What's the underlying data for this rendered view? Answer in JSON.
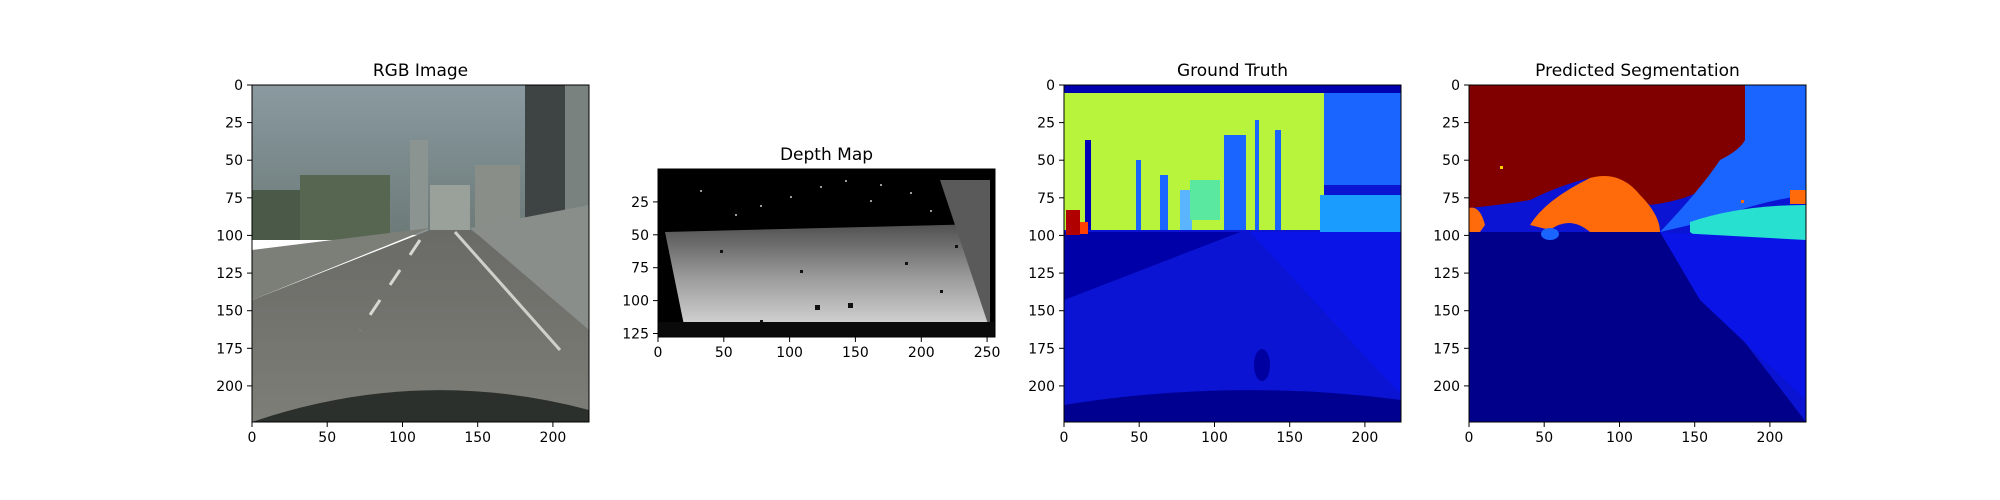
{
  "panels": [
    {
      "id": "rgb",
      "title": "RGB Image",
      "x_ticks": [
        "0",
        "50",
        "100",
        "150",
        "200"
      ],
      "y_ticks": [
        "0",
        "25",
        "50",
        "75",
        "100",
        "125",
        "150",
        "175",
        "200"
      ]
    },
    {
      "id": "depth",
      "title": "Depth Map",
      "x_ticks": [
        "0",
        "50",
        "100",
        "150",
        "200",
        "250"
      ],
      "y_ticks": [
        "25",
        "50",
        "75",
        "100",
        "125"
      ]
    },
    {
      "id": "gt",
      "title": "Ground Truth",
      "x_ticks": [
        "0",
        "50",
        "100",
        "150",
        "200"
      ],
      "y_ticks": [
        "0",
        "25",
        "50",
        "75",
        "100",
        "125",
        "150",
        "175",
        "200"
      ]
    },
    {
      "id": "pred",
      "title": "Predicted Segmentation",
      "x_ticks": [
        "0",
        "50",
        "100",
        "150",
        "200"
      ],
      "y_ticks": [
        "0",
        "25",
        "50",
        "75",
        "100",
        "125",
        "150",
        "175",
        "200"
      ]
    }
  ],
  "colors": {
    "jet_dark_navy": "#00008b",
    "jet_blue": "#0a14d2",
    "jet_light_blue": "#1a64ff",
    "jet_cyan": "#28e0d0",
    "jet_yellow_green": "#b8f43c",
    "jet_orange": "#ff6a0a",
    "jet_dark_red": "#800000",
    "sky_grey": "#7a8a8e",
    "road_grey": "#6e6e6a"
  }
}
